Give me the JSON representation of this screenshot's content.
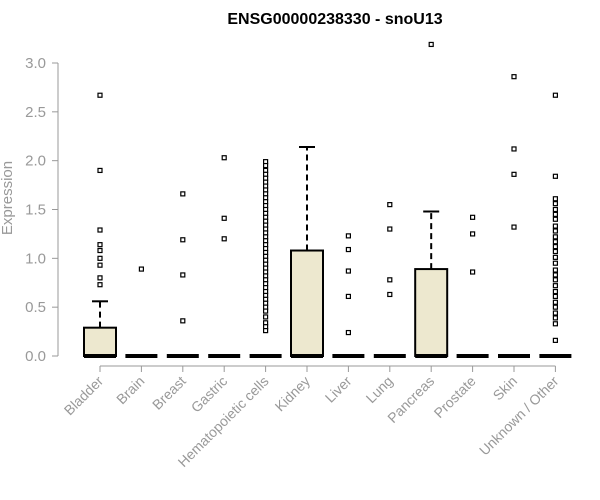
{
  "chart_data": {
    "type": "boxplot",
    "title": "ENSG00000238330 - snoU13",
    "xlabel": "",
    "ylabel": "Expression",
    "ylim": [
      0,
      3.0
    ],
    "yticks": [
      "0.0",
      "0.5",
      "1.0",
      "1.5",
      "2.0",
      "2.5",
      "3.0"
    ],
    "box_fill": "#ede8cf",
    "box_stroke": "#000000",
    "categories": [
      "Bladder",
      "Brain",
      "Breast",
      "Gastric",
      "Hematopoietic cells",
      "Kidney",
      "Liver",
      "Lung",
      "Pancreas",
      "Prostate",
      "Skin",
      "Unknown / Other"
    ],
    "boxes": [
      {
        "q1": 0,
        "median": 0,
        "q3": 0.29,
        "whisker_low": 0,
        "whisker_high": 0.56,
        "outliers": [
          2.67,
          1.9,
          1.29,
          1.14,
          1.08,
          1.0,
          0.93,
          0.8,
          0.73
        ]
      },
      {
        "q1": 0,
        "median": 0,
        "q3": 0,
        "whisker_low": 0,
        "whisker_high": 0,
        "outliers": [
          0.89
        ]
      },
      {
        "q1": 0,
        "median": 0,
        "q3": 0,
        "whisker_low": 0,
        "whisker_high": 0,
        "outliers": [
          1.66,
          1.19,
          0.83,
          0.36
        ]
      },
      {
        "q1": 0,
        "median": 0,
        "q3": 0,
        "whisker_low": 0,
        "whisker_high": 0,
        "outliers": [
          2.03,
          1.41,
          1.2
        ]
      },
      {
        "q1": 0,
        "median": 0,
        "q3": 0,
        "whisker_low": 0,
        "whisker_high": 0,
        "outliers": [
          1.99,
          1.95,
          1.9,
          1.86,
          1.82,
          1.78,
          1.74,
          1.7,
          1.66,
          1.62,
          1.58,
          1.54,
          1.5,
          1.46,
          1.42,
          1.38,
          1.34,
          1.3,
          1.26,
          1.22,
          1.18,
          1.14,
          1.1,
          1.06,
          1.02,
          0.98,
          0.94,
          0.9,
          0.86,
          0.82,
          0.78,
          0.74,
          0.7,
          0.66,
          0.62,
          0.58,
          0.54,
          0.5,
          0.46,
          0.4,
          0.34,
          0.3,
          0.26
        ]
      },
      {
        "q1": 0,
        "median": 0,
        "q3": 1.08,
        "whisker_low": 0,
        "whisker_high": 2.14,
        "outliers": []
      },
      {
        "q1": 0,
        "median": 0,
        "q3": 0,
        "whisker_low": 0,
        "whisker_high": 0,
        "outliers": [
          1.23,
          1.09,
          0.87,
          0.61,
          0.24
        ]
      },
      {
        "q1": 0,
        "median": 0,
        "q3": 0,
        "whisker_low": 0,
        "whisker_high": 0,
        "outliers": [
          1.55,
          1.3,
          0.78,
          0.63
        ]
      },
      {
        "q1": 0,
        "median": 0,
        "q3": 0.89,
        "whisker_low": 0,
        "whisker_high": 1.48,
        "outliers": [
          3.19
        ]
      },
      {
        "q1": 0,
        "median": 0,
        "q3": 0,
        "whisker_low": 0,
        "whisker_high": 0,
        "outliers": [
          1.42,
          1.25,
          0.86
        ]
      },
      {
        "q1": 0,
        "median": 0,
        "q3": 0,
        "whisker_low": 0,
        "whisker_high": 0,
        "outliers": [
          2.86,
          2.12,
          1.86,
          1.32
        ]
      },
      {
        "q1": 0,
        "median": 0,
        "q3": 0,
        "whisker_low": 0,
        "whisker_high": 0,
        "outliers": [
          2.67,
          1.84,
          1.61,
          1.56,
          1.5,
          1.45,
          1.4,
          1.33,
          1.28,
          1.22,
          1.17,
          1.12,
          1.07,
          1.01,
          0.95,
          0.88,
          0.83,
          0.78,
          0.72,
          0.66,
          0.61,
          0.55,
          0.5,
          0.44,
          0.39,
          0.33,
          0.16
        ]
      }
    ]
  }
}
